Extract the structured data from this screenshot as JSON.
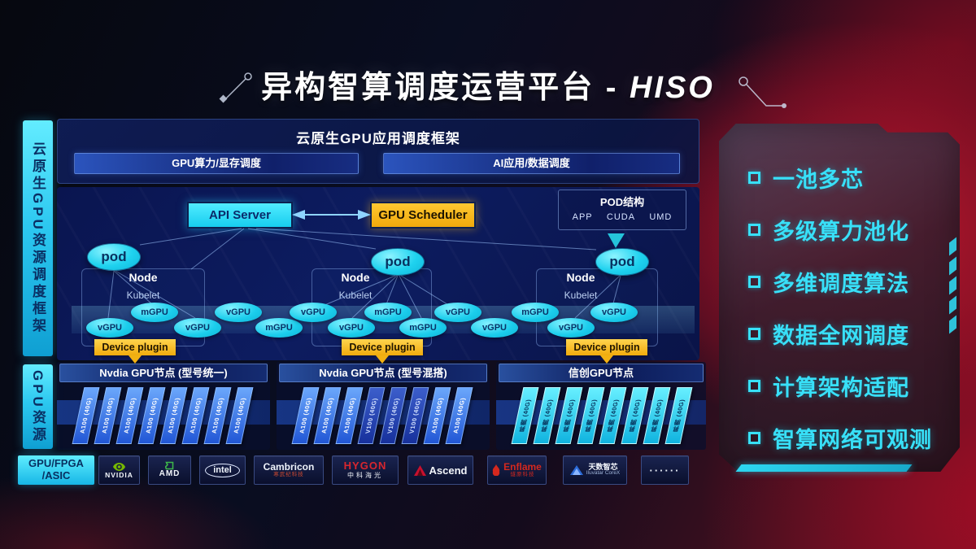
{
  "title": {
    "main": "异构智算调度运营平台",
    "separator": "-",
    "suffix": "HISO"
  },
  "sidebar": {
    "framework_label": "云原生GPU资源调度框架",
    "gpu_label": "GPU资源",
    "chip_line1": "GPU/FPGA",
    "chip_line2": "/ASIC"
  },
  "app_framework": {
    "title": "云原生GPU应用调度框架",
    "left_bar": "GPU算力/显存调度",
    "right_bar": "AI应用/数据调度"
  },
  "control_plane": {
    "api_server": "API Server",
    "gpu_scheduler": "GPU Scheduler"
  },
  "pod_structure": {
    "title": "POD结构",
    "layers": [
      "APP",
      "CUDA",
      "UMD"
    ]
  },
  "nodes": [
    {
      "pod": "pod",
      "label": "Node",
      "agent": "Kubelet",
      "plugin": "Device plugin"
    },
    {
      "pod": "pod",
      "label": "Node",
      "agent": "Kubelet",
      "plugin": "Device plugin"
    },
    {
      "pod": "pod",
      "label": "Node",
      "agent": "Kubelet",
      "plugin": "Device plugin"
    }
  ],
  "gpu_band": [
    {
      "label": "vGPU",
      "row": "low"
    },
    {
      "label": "mGPU",
      "row": "high"
    },
    {
      "label": "vGPU",
      "row": "low"
    },
    {
      "label": "vGPU",
      "row": "high"
    },
    {
      "label": "mGPU",
      "row": "low"
    },
    {
      "label": "vGPU",
      "row": "high"
    },
    {
      "label": "vGPU",
      "row": "low"
    },
    {
      "label": "mGPU",
      "row": "high"
    },
    {
      "label": "mGPU",
      "row": "low"
    },
    {
      "label": "vGPU",
      "row": "high"
    },
    {
      "label": "vGPU",
      "row": "low"
    },
    {
      "label": "mGPU",
      "row": "high"
    },
    {
      "label": "vGPU",
      "row": "low"
    },
    {
      "label": "vGPU",
      "row": "high"
    }
  ],
  "gpu_sections": [
    {
      "header": "Nvdia GPU节点 (型号统一)",
      "cards": [
        {
          "label": "A100 (40G)",
          "type": "a100"
        },
        {
          "label": "A100 (40G)",
          "type": "a100"
        },
        {
          "label": "A100 (40G)",
          "type": "a100"
        },
        {
          "label": "A100 (40G)",
          "type": "a100"
        },
        {
          "label": "A100 (40G)",
          "type": "a100"
        },
        {
          "label": "A100 (40G)",
          "type": "a100"
        },
        {
          "label": "A100 (40G)",
          "type": "a100"
        },
        {
          "label": "A100 (40G)",
          "type": "a100"
        }
      ]
    },
    {
      "header": "Nvdia GPU节点 (型号混搭)",
      "cards": [
        {
          "label": "A100 (40G)",
          "type": "a100"
        },
        {
          "label": "A100 (40G)",
          "type": "a100"
        },
        {
          "label": "A100 (40G)",
          "type": "a100"
        },
        {
          "label": "V100 (40G)",
          "type": "v100"
        },
        {
          "label": "V100 (40G)",
          "type": "v100"
        },
        {
          "label": "V100 (40G)",
          "type": "v100"
        },
        {
          "label": "A100 (40G)",
          "type": "a100"
        },
        {
          "label": "A100 (40G)",
          "type": "a100"
        }
      ]
    },
    {
      "header": "信创GPU节点",
      "cards": [
        {
          "label": "昇腾 (40G)",
          "type": "xc"
        },
        {
          "label": "昇腾 (40G)",
          "type": "xc"
        },
        {
          "label": "昇腾 (40G)",
          "type": "xc"
        },
        {
          "label": "昇腾 (40G)",
          "type": "xc"
        },
        {
          "label": "昇腾 (40G)",
          "type": "xc"
        },
        {
          "label": "昇腾 (40G)",
          "type": "xc"
        },
        {
          "label": "昇腾 (40G)",
          "type": "xc"
        },
        {
          "label": "昇腾 (40G)",
          "type": "xc"
        }
      ]
    }
  ],
  "vendors": [
    {
      "id": "nvidia",
      "text": "NVIDIA"
    },
    {
      "id": "amd",
      "text": "AMD"
    },
    {
      "id": "intel",
      "text": "intel"
    },
    {
      "id": "cambricon",
      "text": "Cambricon",
      "sub": "寒武纪科技"
    },
    {
      "id": "hygon",
      "text": "HYGON",
      "sub": "中科海光"
    },
    {
      "id": "ascend",
      "text": "Ascend"
    },
    {
      "id": "enflame",
      "text": "Enflame",
      "sub": "燧原科技"
    },
    {
      "id": "iluvatar",
      "text": "天数智芯",
      "sub": "Iluvatar CoreX"
    },
    {
      "id": "more",
      "text": "······"
    }
  ],
  "features": [
    "一池多芯",
    "多级算力池化",
    "多维调度算法",
    "数据全网调度",
    "计算架构适配",
    "智算网络可观测"
  ],
  "colors": {
    "cyan": "#2ee3f8",
    "gold": "#f2b113",
    "panel_navy": "#0c1a5a",
    "accent_red": "#b11230"
  }
}
